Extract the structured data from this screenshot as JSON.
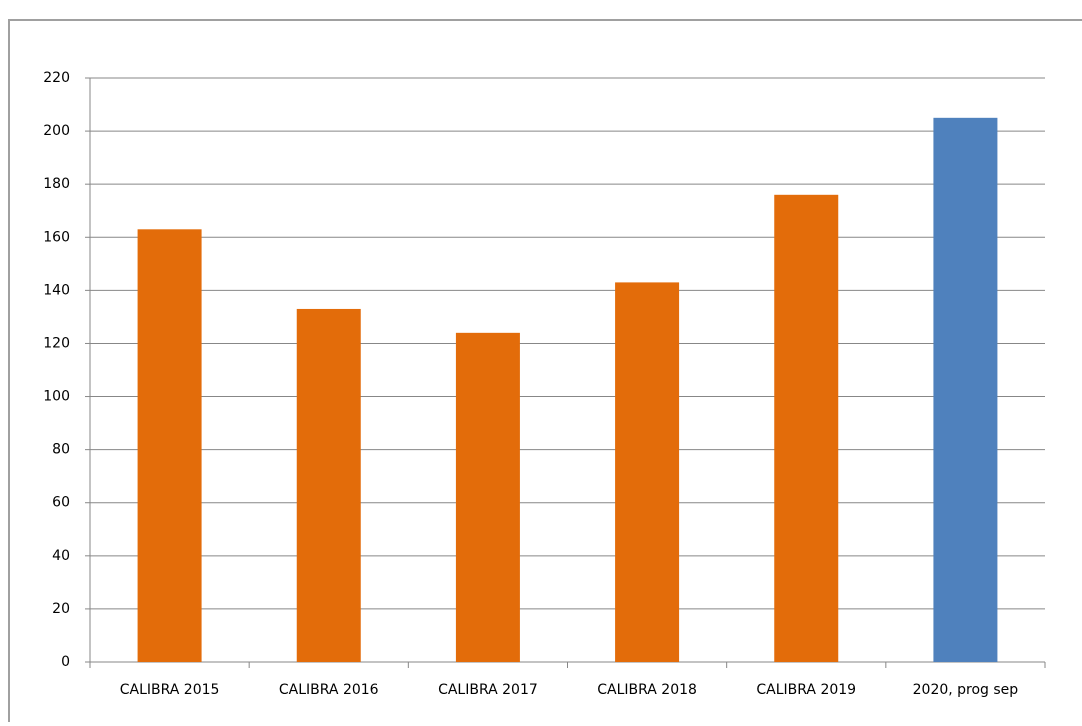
{
  "chart_data": {
    "type": "bar",
    "categories": [
      "CALIBRA 2015",
      "CALIBRA 2016",
      "CALIBRA 2017",
      "CALIBRA 2018",
      "CALIBRA 2019",
      "2020, prog sep"
    ],
    "values": [
      163,
      133,
      124,
      143,
      176,
      205
    ],
    "colors": [
      "#e36c0a",
      "#e36c0a",
      "#e36c0a",
      "#e36c0a",
      "#e36c0a",
      "#4f81bd"
    ],
    "ylim": [
      0,
      220
    ],
    "yticks": [
      0,
      20,
      40,
      60,
      80,
      100,
      120,
      140,
      160,
      180,
      200,
      220
    ],
    "grid": true
  }
}
